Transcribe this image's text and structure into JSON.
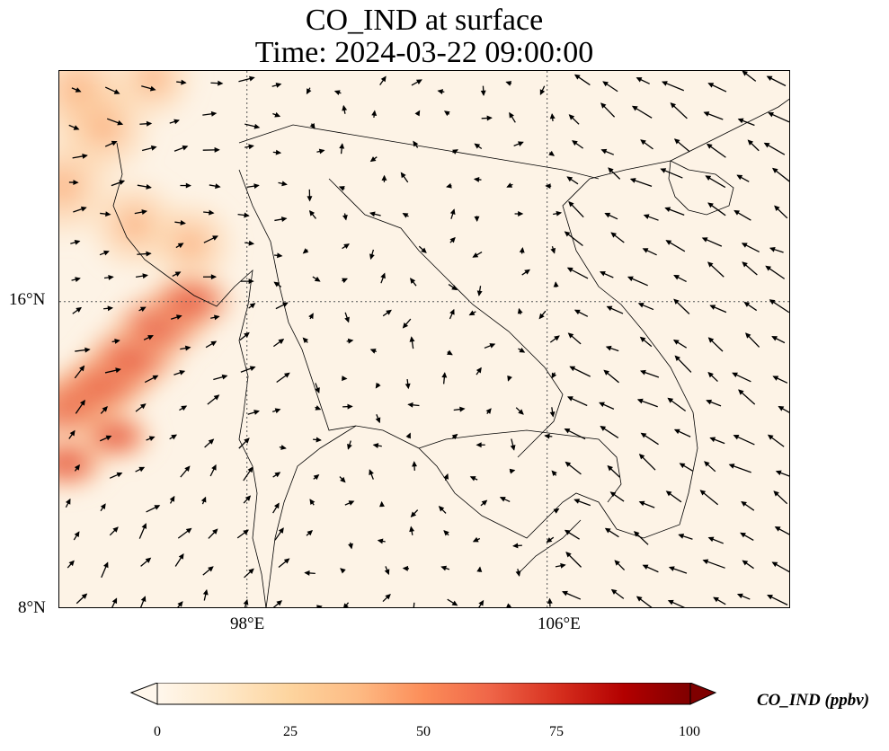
{
  "title": {
    "line1": "CO_IND at surface",
    "line2": "Time: 2024-03-22 09:00:00"
  },
  "map": {
    "lat_range": [
      8,
      22
    ],
    "lon_range": [
      93,
      112.5
    ],
    "lat_ticks": [
      "16°N",
      "8°N"
    ],
    "lon_ticks": [
      "98°E",
      "106°E"
    ],
    "gridlines": true,
    "background_concentration_ppbv": 3,
    "plume": {
      "description_ppbv": "elevated CO_IND over Bay of Bengal / Myanmar coast",
      "peak_ppbv": 55,
      "core_points": [
        [
          93.2,
          13.2,
          50
        ],
        [
          93.8,
          13.6,
          50
        ],
        [
          94.4,
          14.0,
          52
        ],
        [
          95.0,
          14.6,
          55
        ],
        [
          95.7,
          15.4,
          55
        ],
        [
          96.5,
          16.0,
          45
        ],
        [
          93.2,
          11.8,
          38
        ],
        [
          94.5,
          12.5,
          32
        ]
      ],
      "north_points": [
        [
          93.5,
          21.5,
          28
        ],
        [
          94.2,
          20.5,
          20
        ],
        [
          93.1,
          19.0,
          25
        ],
        [
          95.0,
          18.0,
          18
        ],
        [
          96.5,
          17.5,
          15
        ],
        [
          95.5,
          21.8,
          12
        ]
      ]
    }
  },
  "colorbar": {
    "label": "CO_IND (ppbv)",
    "ticks": [
      "0",
      "25",
      "50",
      "75",
      "100"
    ],
    "min": 0,
    "max": 100,
    "colormap": [
      "#fff7ec",
      "#fee8c8",
      "#fdd49e",
      "#fdbb84",
      "#fc8d59",
      "#ef6548",
      "#d7301f",
      "#b30000",
      "#7f0000"
    ]
  }
}
